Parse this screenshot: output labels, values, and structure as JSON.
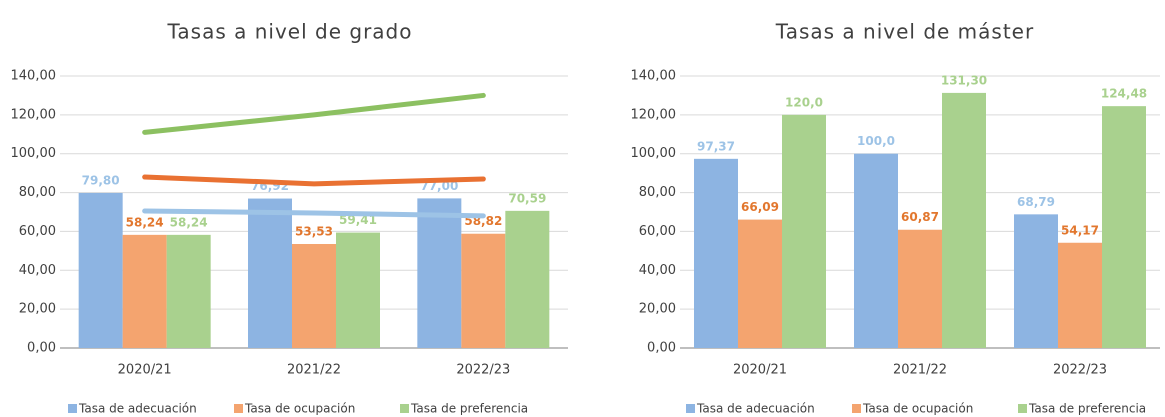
{
  "chart_data": [
    {
      "type": "bar",
      "title": "Tasas a nivel de grado",
      "categories": [
        "2020/21",
        "2021/22",
        "2022/23"
      ],
      "series": [
        {
          "name": "Tasa de adecuación",
          "color": "#8db4e2",
          "label_color": "#9dc3e6",
          "values": [
            79.8,
            76.92,
            77.0
          ],
          "value_labels": [
            "79,80",
            "76,92",
            "77,00"
          ]
        },
        {
          "name": "Tasa de ocupación",
          "color": "#f4a46f",
          "label_color": "#e2772e",
          "values": [
            58.24,
            53.53,
            58.82
          ],
          "value_labels": [
            "58,24",
            "53,53",
            "58,82"
          ]
        },
        {
          "name": "Tasa de preferencia",
          "color": "#a9d18e",
          "label_color": "#a9d18e",
          "values": [
            58.24,
            59.41,
            70.59
          ],
          "value_labels": [
            "58,24",
            "59,41",
            "70,59"
          ]
        }
      ],
      "lines": [
        {
          "color": "#9dc3e6",
          "values": [
            70.5,
            69.5,
            68
          ]
        },
        {
          "color": "#e97132",
          "values": [
            88,
            84.5,
            87
          ]
        },
        {
          "color": "#8cc061",
          "values": [
            111,
            120,
            130
          ]
        }
      ],
      "ylim": [
        0,
        140
      ],
      "yticks": [
        {
          "value": 0,
          "label": "0,00"
        },
        {
          "value": 20,
          "label": "20,00"
        },
        {
          "value": 40,
          "label": "40,00"
        },
        {
          "value": 60,
          "label": "60,00"
        },
        {
          "value": 80,
          "label": "80,00"
        },
        {
          "value": 100,
          "label": "100,00"
        },
        {
          "value": 120,
          "label": "120,00"
        },
        {
          "value": 140,
          "label": "140,00"
        }
      ],
      "grid": true
    },
    {
      "type": "bar",
      "title": "Tasas a nivel de máster",
      "categories": [
        "2020/21",
        "2021/22",
        "2022/23"
      ],
      "series": [
        {
          "name": "Tasa de adecuación",
          "color": "#8db4e2",
          "label_color": "#9dc3e6",
          "values": [
            97.37,
            100.0,
            68.79
          ],
          "value_labels": [
            "97,37",
            "100,0",
            "68,79"
          ]
        },
        {
          "name": "Tasa de ocupación",
          "color": "#f4a46f",
          "label_color": "#e2772e",
          "values": [
            66.09,
            60.87,
            54.17
          ],
          "value_labels": [
            "66,09",
            "60,87",
            "54,17"
          ]
        },
        {
          "name": "Tasa de preferencia",
          "color": "#a9d18e",
          "label_color": "#a9d18e",
          "values": [
            120.0,
            131.3,
            124.48
          ],
          "value_labels": [
            "120,0",
            "131,30",
            "124,48"
          ]
        }
      ],
      "ylim": [
        0,
        140
      ],
      "yticks": [
        {
          "value": 0,
          "label": "0,00"
        },
        {
          "value": 20,
          "label": "20,00"
        },
        {
          "value": 40,
          "label": "40,00"
        },
        {
          "value": 60,
          "label": "60,00"
        },
        {
          "value": 80,
          "label": "80,00"
        },
        {
          "value": 100,
          "label": "100,00"
        },
        {
          "value": 120,
          "label": "120,00"
        },
        {
          "value": 140,
          "label": "140,00"
        }
      ],
      "grid": true
    }
  ]
}
